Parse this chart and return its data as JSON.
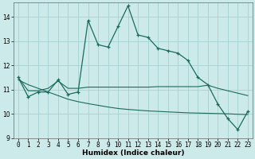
{
  "xlabel": "Humidex (Indice chaleur)",
  "bg_color": "#cdeaea",
  "grid_color": "#aad4d4",
  "line_color": "#1a6b5a",
  "xlim": [
    -0.5,
    23.5
  ],
  "ylim": [
    9,
    14.6
  ],
  "yticks": [
    9,
    10,
    11,
    12,
    13,
    14
  ],
  "xticks": [
    0,
    1,
    2,
    3,
    4,
    5,
    6,
    7,
    8,
    9,
    10,
    11,
    12,
    13,
    14,
    15,
    16,
    17,
    18,
    19,
    20,
    21,
    22,
    23
  ],
  "series1_x": [
    0,
    1,
    2,
    3,
    4,
    5,
    6,
    7,
    8,
    9,
    10,
    11,
    12,
    13,
    14,
    15,
    16,
    17,
    18,
    19,
    20,
    21,
    22,
    23
  ],
  "series1_y": [
    11.5,
    10.7,
    10.9,
    10.9,
    11.4,
    10.8,
    10.9,
    13.85,
    12.85,
    12.75,
    13.6,
    14.45,
    13.25,
    13.15,
    12.7,
    12.6,
    12.5,
    12.2,
    11.5,
    11.2,
    10.4,
    9.8,
    9.35,
    10.1
  ],
  "series2_x": [
    0,
    1,
    2,
    3,
    4,
    5,
    6,
    7,
    8,
    9,
    10,
    11,
    12,
    13,
    14,
    15,
    16,
    17,
    18,
    19,
    20,
    21,
    22,
    23
  ],
  "series2_y": [
    11.5,
    10.95,
    10.95,
    11.05,
    11.35,
    11.05,
    11.05,
    11.1,
    11.1,
    11.1,
    11.1,
    11.1,
    11.1,
    11.1,
    11.12,
    11.12,
    11.12,
    11.12,
    11.12,
    11.18,
    11.05,
    10.95,
    10.85,
    10.75
  ],
  "series3_x": [
    0,
    1,
    2,
    3,
    4,
    5,
    6,
    7,
    8,
    9,
    10,
    11,
    12,
    13,
    14,
    15,
    16,
    17,
    18,
    19,
    20,
    21,
    22,
    23
  ],
  "series3_y": [
    11.4,
    11.2,
    11.05,
    10.9,
    10.75,
    10.6,
    10.5,
    10.42,
    10.35,
    10.28,
    10.22,
    10.18,
    10.15,
    10.12,
    10.1,
    10.08,
    10.06,
    10.04,
    10.03,
    10.02,
    10.01,
    10.0,
    9.98,
    9.97
  ],
  "tick_fontsize": 5.5,
  "axis_fontsize": 6.5
}
